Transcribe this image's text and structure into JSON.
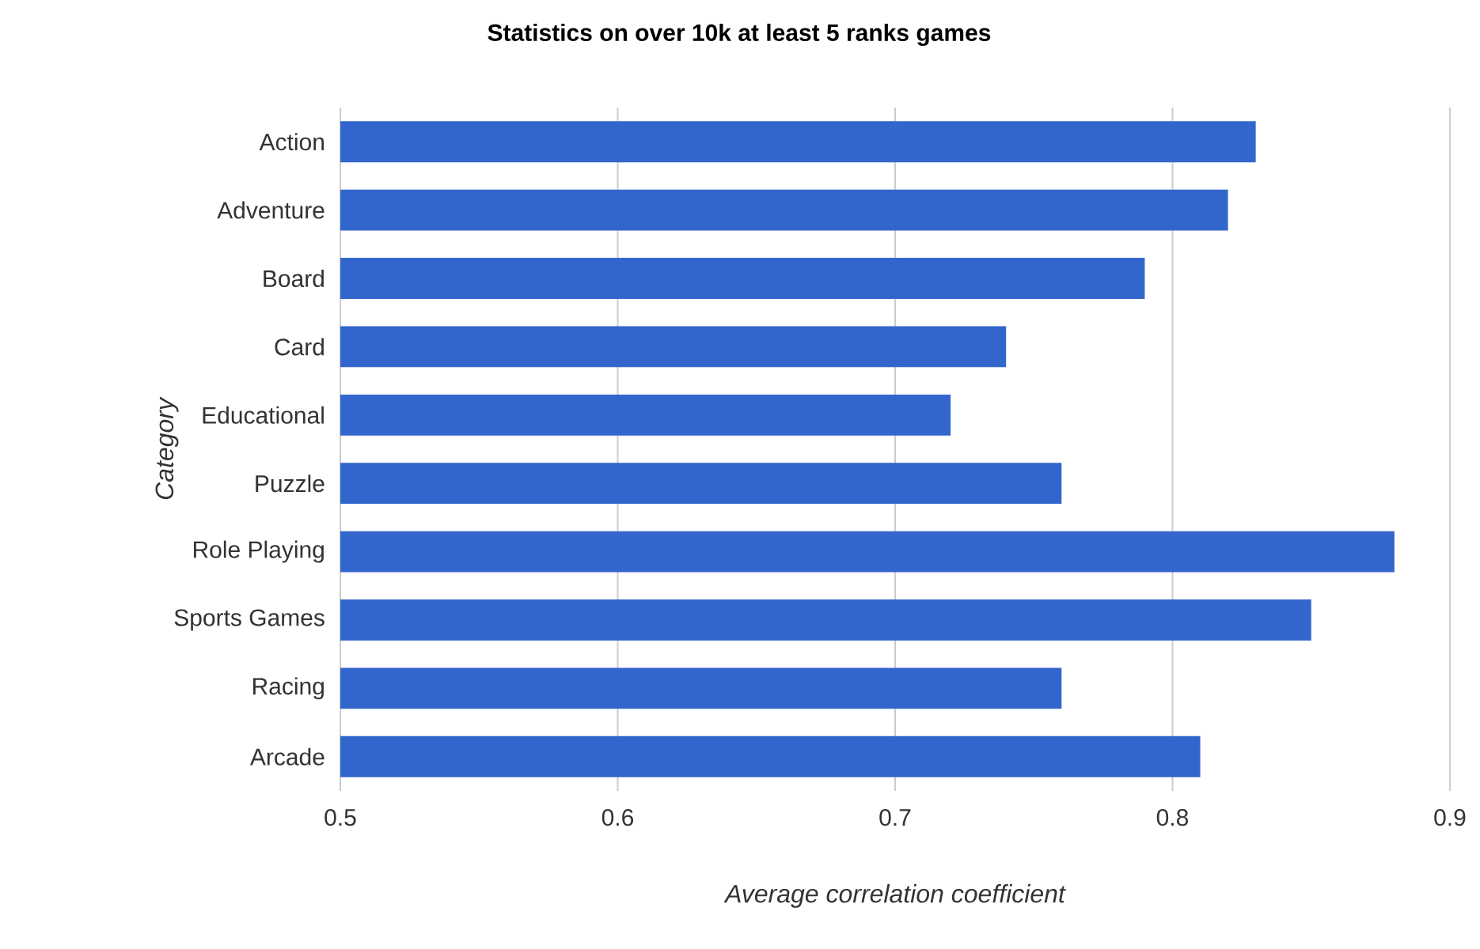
{
  "chart_data": {
    "type": "bar",
    "orientation": "horizontal",
    "title": "Statistics on over 10k at least 5 ranks games",
    "xlabel": "Average correlation coefficient",
    "ylabel": "Category",
    "categories": [
      "Action",
      "Adventure",
      "Board",
      "Card",
      "Educational",
      "Puzzle",
      "Role Playing",
      "Sports Games",
      "Racing",
      "Arcade"
    ],
    "values": [
      0.83,
      0.82,
      0.79,
      0.74,
      0.72,
      0.76,
      0.88,
      0.85,
      0.76,
      0.81
    ],
    "color": "#3366cc",
    "xlim": [
      0.5,
      0.9
    ],
    "xticks": [
      0.5,
      0.6,
      0.7,
      0.8,
      0.9
    ],
    "grid": "x"
  }
}
